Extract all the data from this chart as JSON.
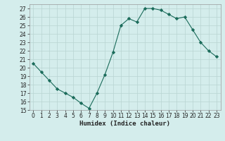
{
  "x": [
    0,
    1,
    2,
    3,
    4,
    5,
    6,
    7,
    8,
    9,
    10,
    11,
    12,
    13,
    14,
    15,
    16,
    17,
    18,
    19,
    20,
    21,
    22,
    23
  ],
  "y": [
    20.5,
    19.5,
    18.5,
    17.5,
    17.0,
    16.5,
    15.8,
    15.2,
    17.0,
    19.2,
    21.8,
    25.0,
    25.8,
    25.4,
    27.0,
    27.0,
    26.8,
    26.3,
    25.8,
    26.0,
    24.5,
    23.0,
    22.0,
    21.3
  ],
  "line_color": "#1a6b5a",
  "marker": "D",
  "marker_size": 2.2,
  "bg_color": "#d4edec",
  "grid_major_color": "#b8d4d2",
  "grid_minor_color": "#c8e2e0",
  "xlabel": "Humidex (Indice chaleur)",
  "ylim": [
    15,
    27.5
  ],
  "xlim": [
    -0.5,
    23.5
  ],
  "yticks": [
    15,
    16,
    17,
    18,
    19,
    20,
    21,
    22,
    23,
    24,
    25,
    26,
    27
  ],
  "xticks": [
    0,
    1,
    2,
    3,
    4,
    5,
    6,
    7,
    8,
    9,
    10,
    11,
    12,
    13,
    14,
    15,
    16,
    17,
    18,
    19,
    20,
    21,
    22,
    23
  ],
  "tick_fontsize": 5.5,
  "xlabel_fontsize": 6.5,
  "linewidth": 0.8
}
